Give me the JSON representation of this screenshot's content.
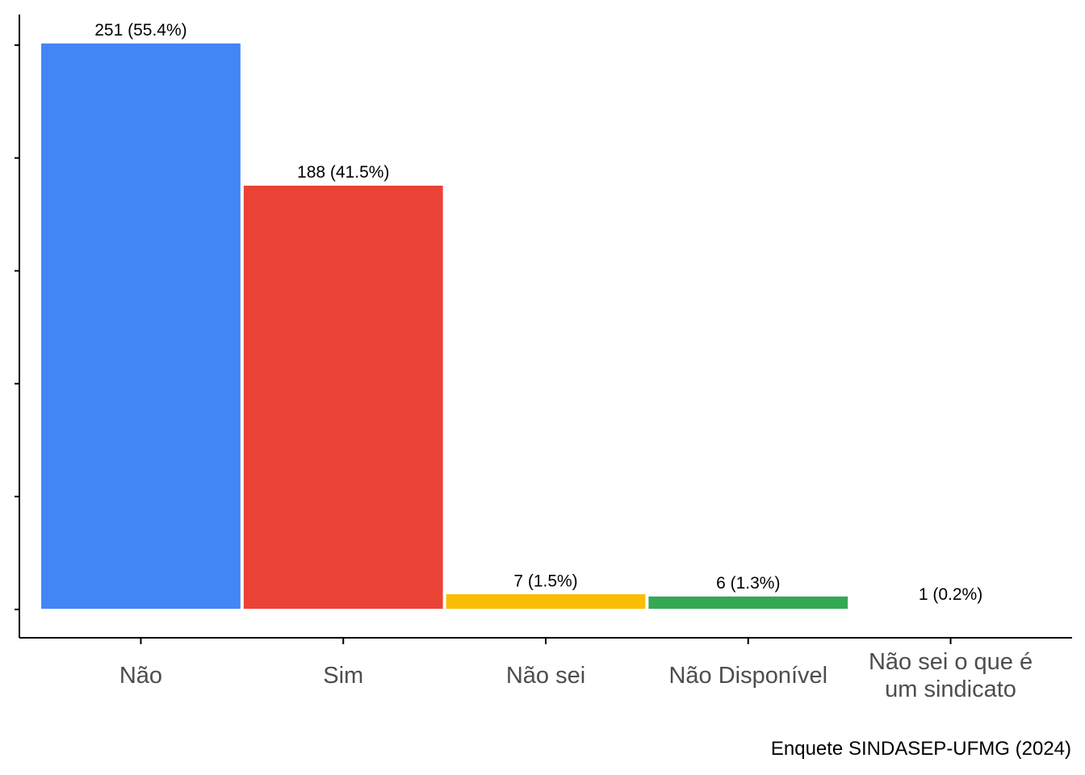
{
  "chart_data": {
    "type": "bar",
    "title": "",
    "xlabel": "",
    "ylabel": "",
    "categories": [
      "Não",
      "Sim",
      "Não sei",
      "Não Disponível",
      "Não sei o que é um sindicato"
    ],
    "values": [
      251,
      188,
      7,
      6,
      1
    ],
    "value_labels": [
      "251 (55.4%)",
      "188 (41.5%)",
      "7 (1.5%)",
      "6 (1.3%)",
      "1 (0.2%)"
    ],
    "bar_colors": [
      "#4285f4",
      "#ea4335",
      "#fbbc04",
      "#34a853",
      "#ffffff"
    ],
    "ylim": [
      -12.55,
      263.55
    ],
    "y_tick_values": [
      0,
      50,
      100,
      150,
      200,
      250
    ],
    "y_tick_labels_shown": false,
    "grid": false,
    "legend": "none",
    "caption": "Enquete SINDASEP-UFMG (2024)"
  }
}
